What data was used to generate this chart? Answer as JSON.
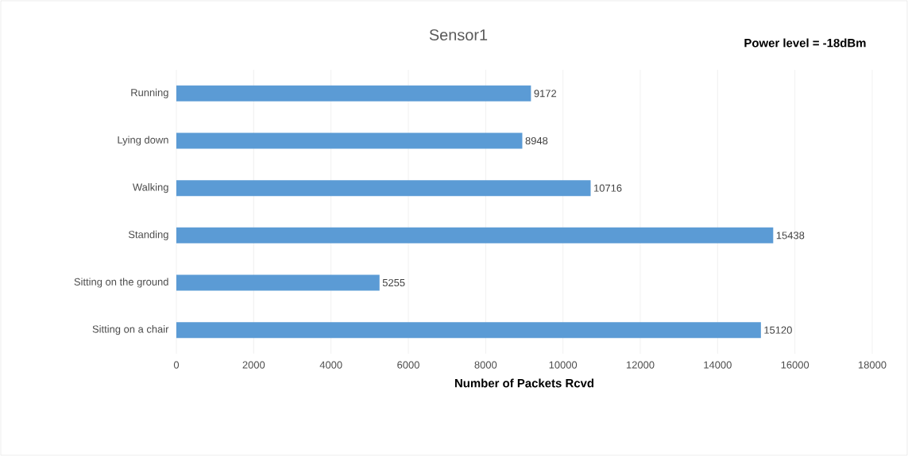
{
  "chart_data": {
    "type": "bar",
    "orientation": "horizontal",
    "title": "Sensor1",
    "xlabel": "Number of Packets Rcvd",
    "annotations": [
      "Power level = -18dBm"
    ],
    "categories": [
      "Running",
      "Lying down",
      "Walking",
      "Standing",
      "Sitting on the ground",
      "Sitting on a chair"
    ],
    "values": [
      9172,
      8948,
      10716,
      15438,
      5255,
      15120
    ],
    "color": "#5b9bd5",
    "xlim": [
      0,
      18000
    ],
    "xticks": [
      0,
      2000,
      4000,
      6000,
      8000,
      10000,
      12000,
      14000,
      16000,
      18000
    ],
    "grid": "x",
    "data_labels": true
  }
}
